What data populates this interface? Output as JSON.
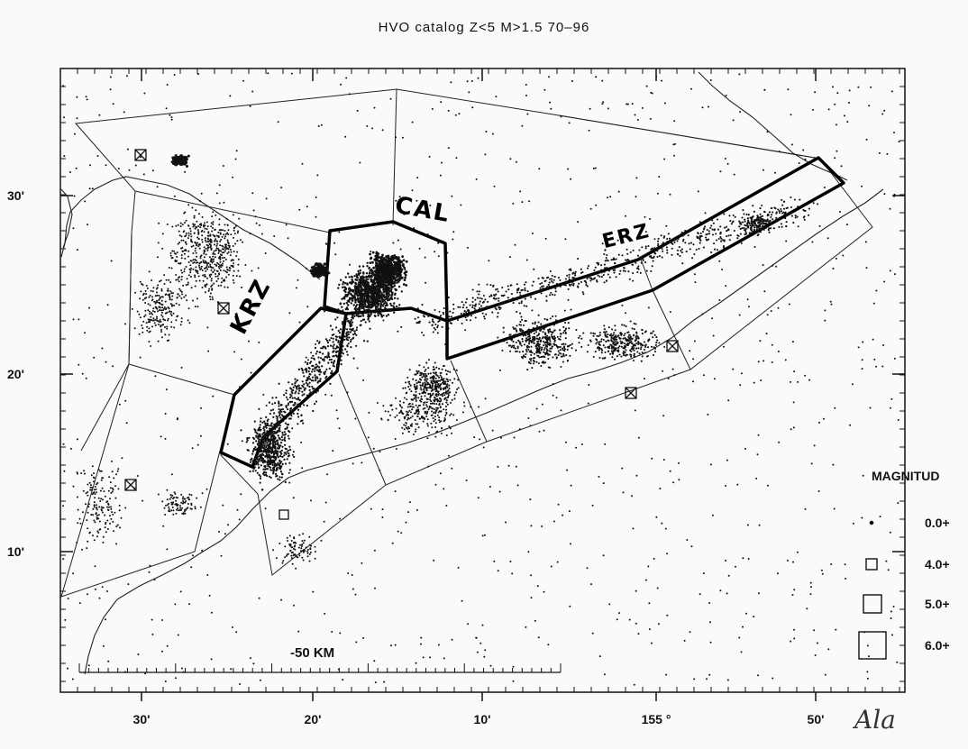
{
  "map": {
    "title": "HVO  catalog  Z<5  M>1.5  70–96",
    "zones": [
      {
        "id": "krz",
        "label": "KRZ"
      },
      {
        "id": "cal",
        "label": "CAL"
      },
      {
        "id": "erz",
        "label": "ERZ"
      }
    ],
    "longitude_ticks": [
      "30'",
      "20'",
      "10'",
      "155 °",
      "50'"
    ],
    "latitude_ticks": [
      "30'",
      "20'",
      "10'"
    ],
    "scale_bar": {
      "label": "-50  KM"
    },
    "legend": {
      "title": "MAGNITUD",
      "items": [
        {
          "label": "0.0+",
          "symbol": "dot"
        },
        {
          "label": "4.0+",
          "symbol": "square-small"
        },
        {
          "label": "5.0+",
          "symbol": "square-medium"
        },
        {
          "label": "6.0+",
          "symbol": "square-large"
        }
      ]
    },
    "annotation": "Ala"
  }
}
